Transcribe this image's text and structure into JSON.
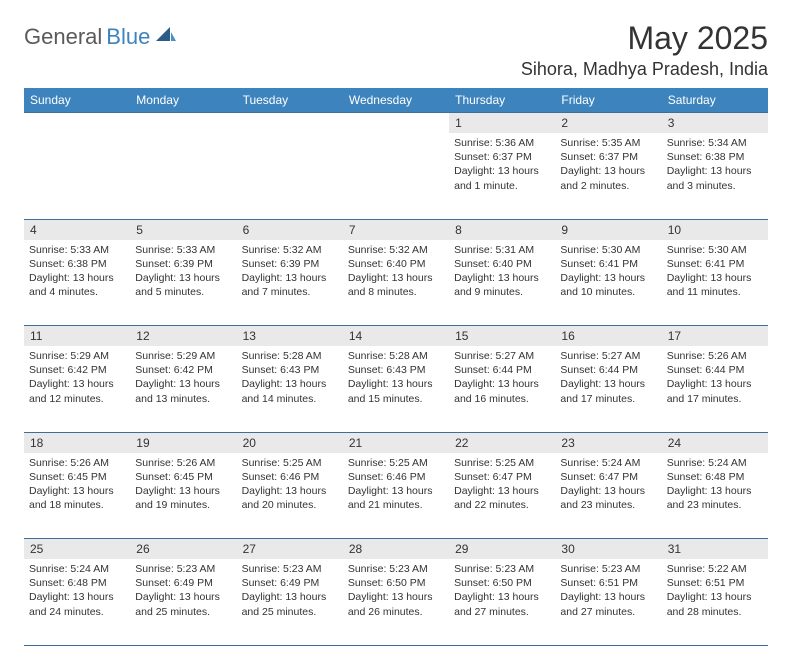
{
  "brand": {
    "part1": "General",
    "part2": "Blue"
  },
  "title": "May 2025",
  "location": "Sihora, Madhya Pradesh, India",
  "colors": {
    "header_bg": "#3d83bd",
    "header_text": "#ffffff",
    "daynum_bg": "#e9e9e9",
    "border": "#3d6f9a",
    "text": "#333333",
    "logo_gray": "#5a5a5a",
    "logo_blue": "#3d83bd"
  },
  "day_headers": [
    "Sunday",
    "Monday",
    "Tuesday",
    "Wednesday",
    "Thursday",
    "Friday",
    "Saturday"
  ],
  "weeks": [
    {
      "nums": [
        "",
        "",
        "",
        "",
        "1",
        "2",
        "3"
      ],
      "cells": [
        null,
        null,
        null,
        null,
        {
          "sunrise": "Sunrise: 5:36 AM",
          "sunset": "Sunset: 6:37 PM",
          "day1": "Daylight: 13 hours",
          "day2": "and 1 minute."
        },
        {
          "sunrise": "Sunrise: 5:35 AM",
          "sunset": "Sunset: 6:37 PM",
          "day1": "Daylight: 13 hours",
          "day2": "and 2 minutes."
        },
        {
          "sunrise": "Sunrise: 5:34 AM",
          "sunset": "Sunset: 6:38 PM",
          "day1": "Daylight: 13 hours",
          "day2": "and 3 minutes."
        }
      ]
    },
    {
      "nums": [
        "4",
        "5",
        "6",
        "7",
        "8",
        "9",
        "10"
      ],
      "cells": [
        {
          "sunrise": "Sunrise: 5:33 AM",
          "sunset": "Sunset: 6:38 PM",
          "day1": "Daylight: 13 hours",
          "day2": "and 4 minutes."
        },
        {
          "sunrise": "Sunrise: 5:33 AM",
          "sunset": "Sunset: 6:39 PM",
          "day1": "Daylight: 13 hours",
          "day2": "and 5 minutes."
        },
        {
          "sunrise": "Sunrise: 5:32 AM",
          "sunset": "Sunset: 6:39 PM",
          "day1": "Daylight: 13 hours",
          "day2": "and 7 minutes."
        },
        {
          "sunrise": "Sunrise: 5:32 AM",
          "sunset": "Sunset: 6:40 PM",
          "day1": "Daylight: 13 hours",
          "day2": "and 8 minutes."
        },
        {
          "sunrise": "Sunrise: 5:31 AM",
          "sunset": "Sunset: 6:40 PM",
          "day1": "Daylight: 13 hours",
          "day2": "and 9 minutes."
        },
        {
          "sunrise": "Sunrise: 5:30 AM",
          "sunset": "Sunset: 6:41 PM",
          "day1": "Daylight: 13 hours",
          "day2": "and 10 minutes."
        },
        {
          "sunrise": "Sunrise: 5:30 AM",
          "sunset": "Sunset: 6:41 PM",
          "day1": "Daylight: 13 hours",
          "day2": "and 11 minutes."
        }
      ]
    },
    {
      "nums": [
        "11",
        "12",
        "13",
        "14",
        "15",
        "16",
        "17"
      ],
      "cells": [
        {
          "sunrise": "Sunrise: 5:29 AM",
          "sunset": "Sunset: 6:42 PM",
          "day1": "Daylight: 13 hours",
          "day2": "and 12 minutes."
        },
        {
          "sunrise": "Sunrise: 5:29 AM",
          "sunset": "Sunset: 6:42 PM",
          "day1": "Daylight: 13 hours",
          "day2": "and 13 minutes."
        },
        {
          "sunrise": "Sunrise: 5:28 AM",
          "sunset": "Sunset: 6:43 PM",
          "day1": "Daylight: 13 hours",
          "day2": "and 14 minutes."
        },
        {
          "sunrise": "Sunrise: 5:28 AM",
          "sunset": "Sunset: 6:43 PM",
          "day1": "Daylight: 13 hours",
          "day2": "and 15 minutes."
        },
        {
          "sunrise": "Sunrise: 5:27 AM",
          "sunset": "Sunset: 6:44 PM",
          "day1": "Daylight: 13 hours",
          "day2": "and 16 minutes."
        },
        {
          "sunrise": "Sunrise: 5:27 AM",
          "sunset": "Sunset: 6:44 PM",
          "day1": "Daylight: 13 hours",
          "day2": "and 17 minutes."
        },
        {
          "sunrise": "Sunrise: 5:26 AM",
          "sunset": "Sunset: 6:44 PM",
          "day1": "Daylight: 13 hours",
          "day2": "and 17 minutes."
        }
      ]
    },
    {
      "nums": [
        "18",
        "19",
        "20",
        "21",
        "22",
        "23",
        "24"
      ],
      "cells": [
        {
          "sunrise": "Sunrise: 5:26 AM",
          "sunset": "Sunset: 6:45 PM",
          "day1": "Daylight: 13 hours",
          "day2": "and 18 minutes."
        },
        {
          "sunrise": "Sunrise: 5:26 AM",
          "sunset": "Sunset: 6:45 PM",
          "day1": "Daylight: 13 hours",
          "day2": "and 19 minutes."
        },
        {
          "sunrise": "Sunrise: 5:25 AM",
          "sunset": "Sunset: 6:46 PM",
          "day1": "Daylight: 13 hours",
          "day2": "and 20 minutes."
        },
        {
          "sunrise": "Sunrise: 5:25 AM",
          "sunset": "Sunset: 6:46 PM",
          "day1": "Daylight: 13 hours",
          "day2": "and 21 minutes."
        },
        {
          "sunrise": "Sunrise: 5:25 AM",
          "sunset": "Sunset: 6:47 PM",
          "day1": "Daylight: 13 hours",
          "day2": "and 22 minutes."
        },
        {
          "sunrise": "Sunrise: 5:24 AM",
          "sunset": "Sunset: 6:47 PM",
          "day1": "Daylight: 13 hours",
          "day2": "and 23 minutes."
        },
        {
          "sunrise": "Sunrise: 5:24 AM",
          "sunset": "Sunset: 6:48 PM",
          "day1": "Daylight: 13 hours",
          "day2": "and 23 minutes."
        }
      ]
    },
    {
      "nums": [
        "25",
        "26",
        "27",
        "28",
        "29",
        "30",
        "31"
      ],
      "cells": [
        {
          "sunrise": "Sunrise: 5:24 AM",
          "sunset": "Sunset: 6:48 PM",
          "day1": "Daylight: 13 hours",
          "day2": "and 24 minutes."
        },
        {
          "sunrise": "Sunrise: 5:23 AM",
          "sunset": "Sunset: 6:49 PM",
          "day1": "Daylight: 13 hours",
          "day2": "and 25 minutes."
        },
        {
          "sunrise": "Sunrise: 5:23 AM",
          "sunset": "Sunset: 6:49 PM",
          "day1": "Daylight: 13 hours",
          "day2": "and 25 minutes."
        },
        {
          "sunrise": "Sunrise: 5:23 AM",
          "sunset": "Sunset: 6:50 PM",
          "day1": "Daylight: 13 hours",
          "day2": "and 26 minutes."
        },
        {
          "sunrise": "Sunrise: 5:23 AM",
          "sunset": "Sunset: 6:50 PM",
          "day1": "Daylight: 13 hours",
          "day2": "and 27 minutes."
        },
        {
          "sunrise": "Sunrise: 5:23 AM",
          "sunset": "Sunset: 6:51 PM",
          "day1": "Daylight: 13 hours",
          "day2": "and 27 minutes."
        },
        {
          "sunrise": "Sunrise: 5:22 AM",
          "sunset": "Sunset: 6:51 PM",
          "day1": "Daylight: 13 hours",
          "day2": "and 28 minutes."
        }
      ]
    }
  ]
}
